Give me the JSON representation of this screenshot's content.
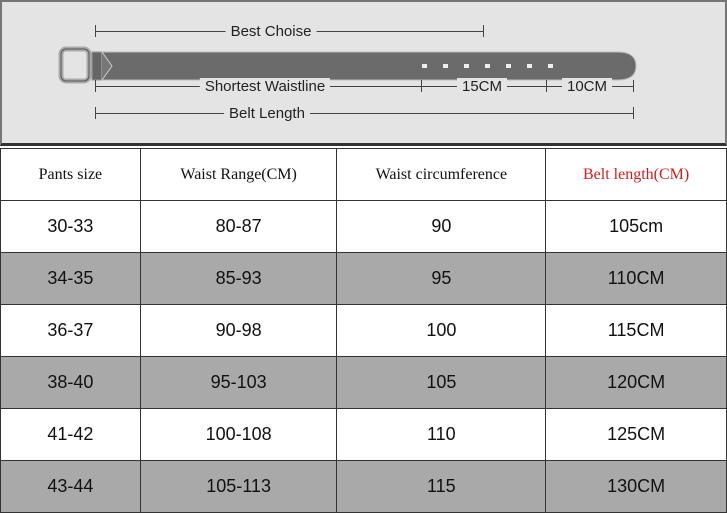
{
  "diagram": {
    "best_choice": "Best Choise",
    "shortest_waistline": "Shortest Waistline",
    "segment_1": "15CM",
    "segment_2": "10CM",
    "belt_length": "Belt Length",
    "hole_count": 7
  },
  "table": {
    "headers": [
      "Pants size",
      "Waist Range(CM)",
      "Waist circumference",
      "Belt length(CM)"
    ],
    "header_accent_color": "#cc1f1f",
    "rows": [
      [
        "30-33",
        "80-87",
        "90",
        "105cm"
      ],
      [
        "34-35",
        "85-93",
        "95",
        "110CM"
      ],
      [
        "36-37",
        "90-98",
        "100",
        "115CM"
      ],
      [
        "38-40",
        "95-103",
        "105",
        "120CM"
      ],
      [
        "41-42",
        "100-108",
        "110",
        "125CM"
      ],
      [
        "43-44",
        "105-113",
        "115",
        "130CM"
      ]
    ]
  }
}
